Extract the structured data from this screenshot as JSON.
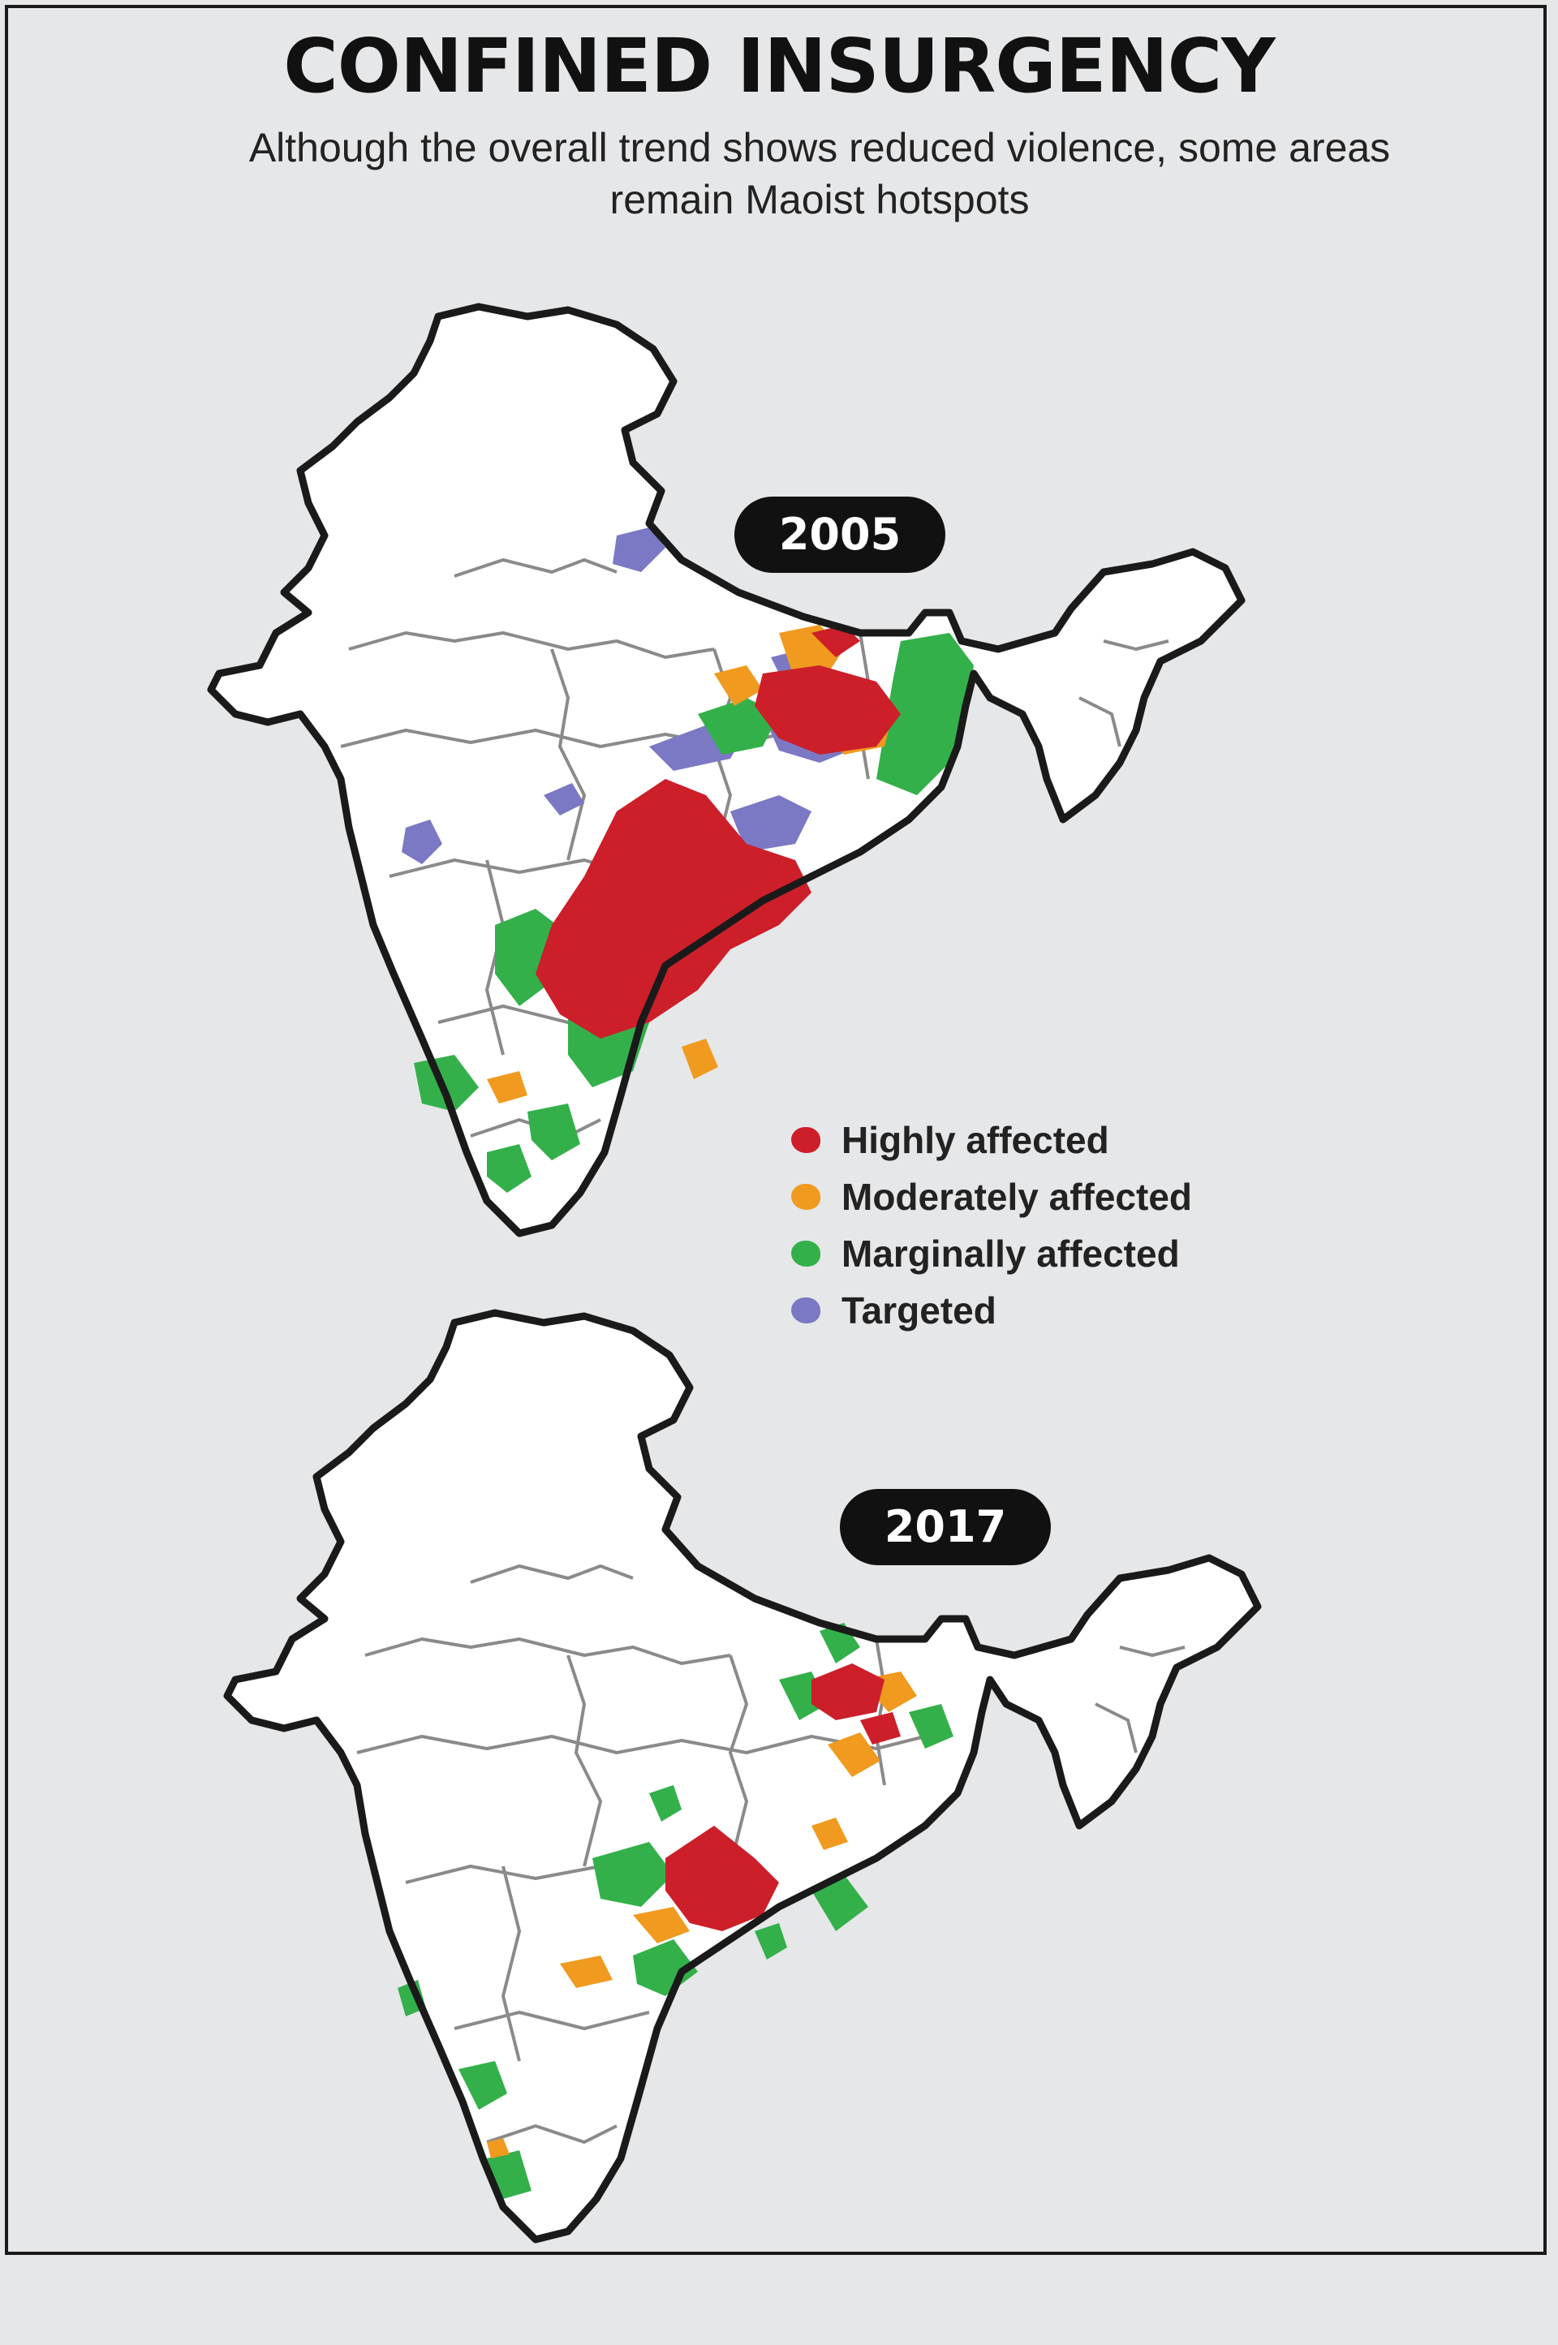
{
  "title": "CONFINED INSURGENCY",
  "subtitle": "Although the overall trend shows reduced violence, some areas remain Maoist hotspots",
  "colors": {
    "highly": "#cc1f2a",
    "moderately": "#f09a1f",
    "marginally": "#33b04a",
    "targeted": "#7b78c4",
    "land": "#ffffff",
    "outline": "#1a1a1a",
    "border": "#8a8a8a",
    "background": "#e6e7e9"
  },
  "maps": [
    {
      "year": "2005"
    },
    {
      "year": "2017"
    }
  ],
  "legend": [
    {
      "label": "Highly affected",
      "color": "#cc1f2a"
    },
    {
      "label": "Moderately affected",
      "color": "#f09a1f"
    },
    {
      "label": "Marginally affected",
      "color": "#33b04a"
    },
    {
      "label": "Targeted",
      "color": "#7b78c4"
    }
  ]
}
